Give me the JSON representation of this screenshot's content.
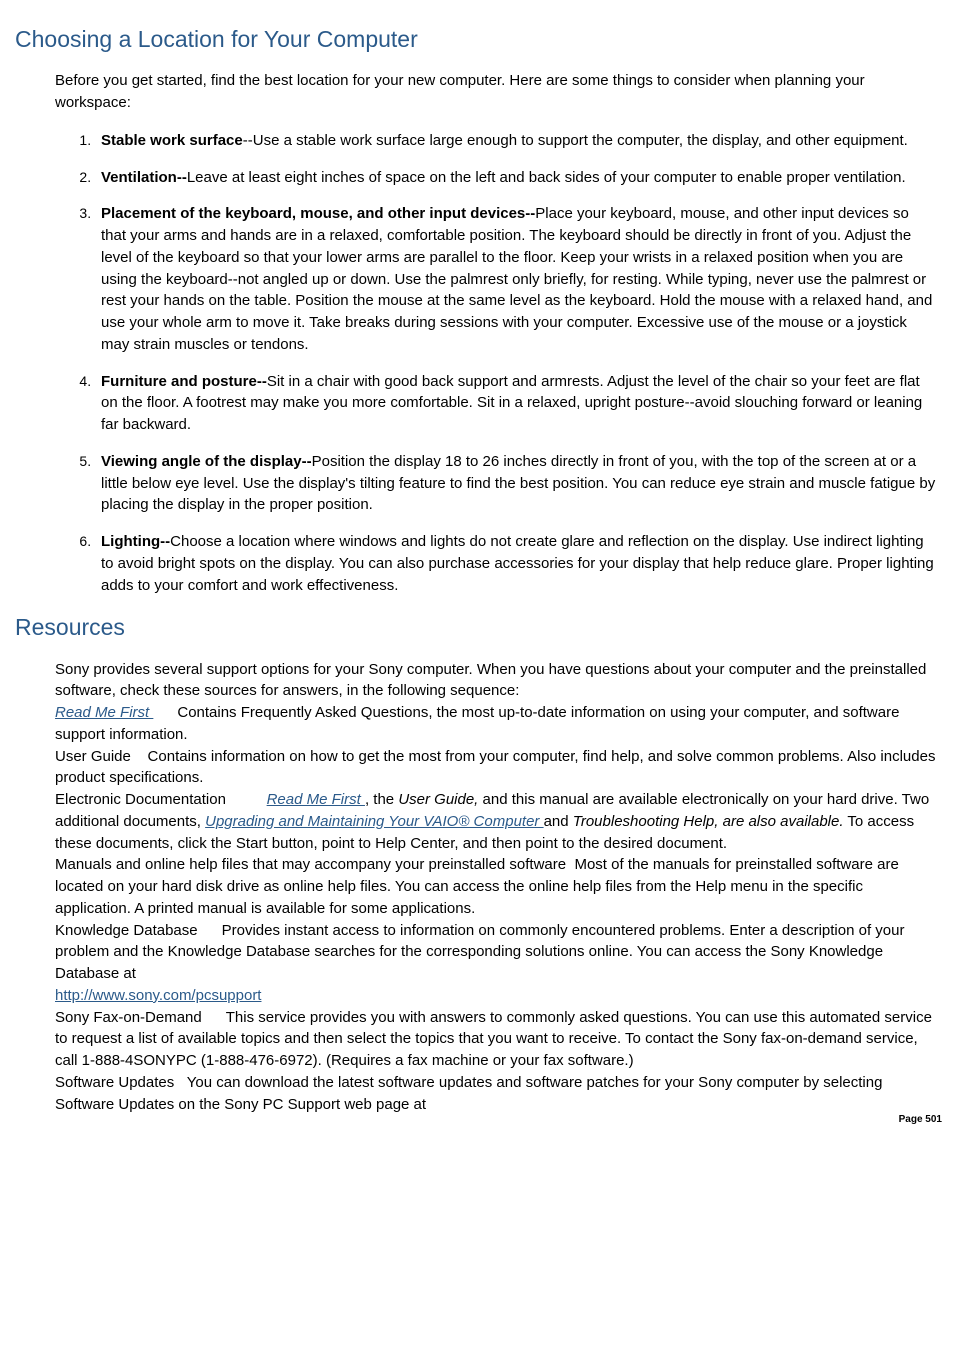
{
  "heading1": "Choosing a Location for Your Computer",
  "intro1": "Before you get started, find the best location for your new computer. Here are some things to consider when planning your workspace:",
  "items": [
    {
      "bold": "Stable work surface",
      "sep": "--",
      "text": "Use a stable work surface large enough to support the computer, the display, and other equipment."
    },
    {
      "bold": "Ventilation--",
      "sep": "",
      "text": "Leave at least eight inches of space on the left and back sides of your computer to enable proper ventilation."
    },
    {
      "bold": "Placement of the keyboard, mouse, and other input devices--",
      "sep": "",
      "text": "Place your keyboard, mouse, and other input devices so that your arms and hands are in a relaxed, comfortable position. The keyboard should be directly in front of you. Adjust the level of the keyboard so that your lower arms are parallel to the floor. Keep your wrists in a relaxed position when you are using the keyboard--not angled up or down. Use the palmrest only briefly, for resting. While typing, never use the palmrest or rest your hands on the table. Position the mouse at the same level as the keyboard. Hold the mouse with a relaxed hand, and use your whole arm to move it. Take breaks during sessions with your computer. Excessive use of the mouse or a joystick may strain muscles or tendons."
    },
    {
      "bold": "Furniture and posture--",
      "sep": "",
      "text": "Sit in a chair with good back support and armrests. Adjust the level of the chair so your feet are flat on the floor. A footrest may make you more comfortable. Sit in a relaxed, upright posture--avoid slouching forward or leaning far backward."
    },
    {
      "bold": "Viewing angle of the display--",
      "sep": "",
      "text": "Position the display 18 to 26 inches directly in front of you, with the top of the screen at or a little below eye level. Use the display's tilting feature to find the best position. You can reduce eye strain and muscle fatigue by placing the display in the proper position."
    },
    {
      "bold": "Lighting--",
      "sep": "",
      "text": "Choose a location where windows and lights do not create glare and reflection on the display. Use indirect lighting to avoid bright spots on the display. You can also purchase accessories for your display that help reduce glare. Proper lighting adds to your comfort and work effectiveness."
    }
  ],
  "heading2": "Resources",
  "intro2": "Sony provides several support options for your Sony computer. When you have questions about your computer and the preinstalled software, check these sources for answers, in the following sequence:",
  "res": {
    "readme_link": "Read Me First ",
    "readme_text": "Contains Frequently Asked Questions, the most up-to-date information on using your computer, and software support information.",
    "userguide_label": "User Guide",
    "userguide_text": "Contains information on how to get the most from your computer, find help, and solve common problems. Also includes product specifications.",
    "edoc_label": "Electronic Documentation",
    "edoc_link1": "Read Me First ",
    "edoc_mid1": ", the ",
    "edoc_ital": "User Guide,",
    "edoc_mid2": " and this manual are available electronically on your hard drive. Two additional documents, ",
    "edoc_link2": "Upgrading and Maintaining Your VAIO® Computer ",
    "edoc_mid3": "and ",
    "edoc_ital2": "Troubleshooting Help, are also available.",
    "edoc_end": " To access these documents, click the Start button, point to Help Center, and then point to the desired document.",
    "manuals_label": "Manuals and online help files that may accompany your preinstalled software",
    "manuals_text": "Most of the manuals for preinstalled software are located on your hard disk drive as online help files. You can access the online help files from the Help menu in the specific application. A printed manual is available for some applications.",
    "kb_label": "Knowledge Database",
    "kb_text": "Provides instant access to information on commonly encountered problems. Enter a description of your problem and the Knowledge Database searches for the corresponding solutions online. You can access the Sony Knowledge Database at",
    "kb_url": "http://www.sony.com/pcsupport",
    "fax_label": "Sony Fax-on-Demand",
    "fax_text": "This service provides you with answers to commonly asked questions. You can use this automated service to request a list of available topics and then select the topics that you want to receive. To contact the Sony fax-on-demand service, call 1-888-4SONYPC (1-888-476-6972). (Requires a fax machine or your fax software.)",
    "sw_label": "Software Updates",
    "sw_text": "You can download the latest software updates and software patches for your Sony computer by selecting Software Updates on the Sony PC Support web page at"
  },
  "page_number": "Page 501",
  "colors": {
    "heading_color": "#2b5a8a",
    "link_color": "#2b5a8a",
    "text_color": "#000000",
    "background": "#ffffff"
  }
}
